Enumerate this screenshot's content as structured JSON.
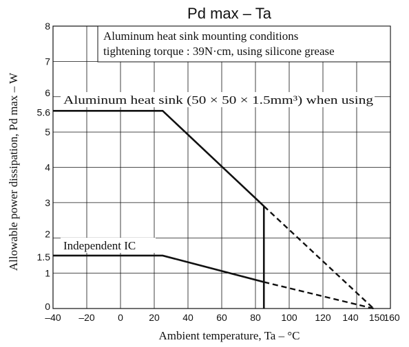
{
  "chart_data": {
    "type": "line",
    "title": "Pd max  –  Ta",
    "xlabel": "Ambient temperature, Ta  –  °C",
    "ylabel": "Allowable power dissipation, Pd max  – W",
    "xlim": [
      -40,
      160
    ],
    "ylim": [
      0,
      8
    ],
    "x_ticks": [
      "–40",
      "–20",
      "0",
      "20",
      "40",
      "60",
      "80",
      "100",
      "120",
      "140",
      "150",
      "160"
    ],
    "x_tick_values": [
      -40,
      -20,
      0,
      20,
      40,
      60,
      80,
      100,
      120,
      140,
      150,
      160
    ],
    "y_ticks": [
      "0",
      "1",
      "1.5",
      "2",
      "3",
      "4",
      "5",
      "5.6",
      "6",
      "7",
      "8"
    ],
    "y_tick_values": [
      0,
      1,
      1.5,
      2,
      3,
      4,
      5,
      5.6,
      6,
      7,
      8
    ],
    "x_gridlines": [
      -20,
      0,
      20,
      40,
      60,
      80,
      100,
      120,
      140
    ],
    "y_gridlines": [
      1,
      2,
      3,
      4,
      5,
      6,
      7
    ],
    "grid": true,
    "series": [
      {
        "name": "Aluminum heat sink (50 × 50 × 1.5mm³) when using",
        "solid": [
          [
            -40,
            5.6
          ],
          [
            25,
            5.6
          ],
          [
            85,
            2.9
          ]
        ],
        "dashed": [
          [
            85,
            2.9
          ],
          [
            150,
            0
          ]
        ]
      },
      {
        "name": "Independent IC",
        "solid": [
          [
            -40,
            1.5
          ],
          [
            25,
            1.5
          ],
          [
            85,
            0.75
          ]
        ],
        "dashed": [
          [
            85,
            0.75
          ],
          [
            150,
            0
          ]
        ]
      }
    ],
    "vertical_line": {
      "x": 85,
      "y_from": 0,
      "y_to": 2.9
    },
    "annotations": {
      "box_line1": "Aluminum heat sink mounting conditions",
      "box_line2": "tightening torque : 39N·cm, using silicone grease",
      "series1_label": "Aluminum heat sink (50 × 50 × 1.5mm³) when using",
      "series2_label": "Independent IC"
    },
    "colors": {
      "line": "#111111",
      "grid": "#111111",
      "background": "#ffffff"
    }
  }
}
